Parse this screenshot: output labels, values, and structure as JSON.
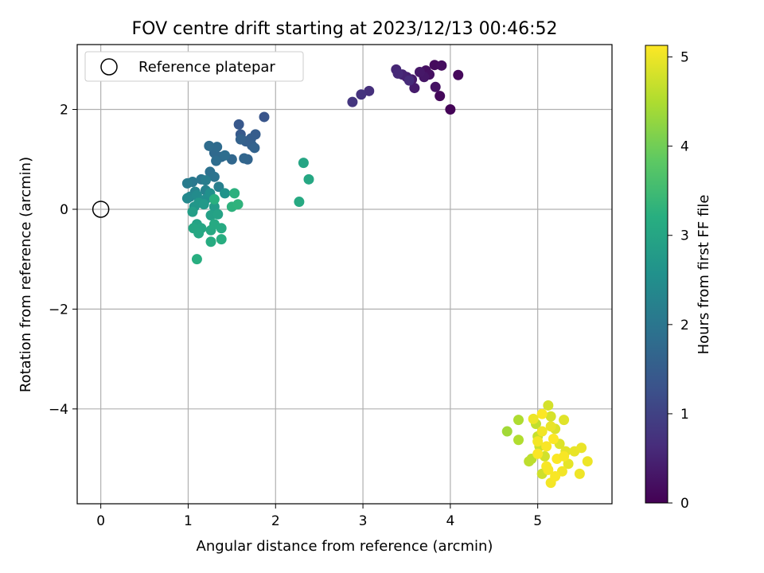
{
  "chart_data": {
    "type": "scatter",
    "title": "FOV centre drift starting at 2023/12/13 00:46:52",
    "xlabel": "Angular distance from reference (arcmin)",
    "ylabel": "Rotation from reference (arcmin)",
    "xlim": [
      -0.27,
      5.85
    ],
    "ylim": [
      -5.9,
      3.3
    ],
    "x_ticks": [
      0,
      1,
      2,
      3,
      4,
      5
    ],
    "y_ticks": [
      -4,
      -2,
      0,
      2
    ],
    "x_tick_labels": [
      "0",
      "1",
      "2",
      "3",
      "4",
      "5"
    ],
    "y_tick_labels": [
      "−4",
      "−2",
      "0",
      "2"
    ],
    "grid": true,
    "legend": {
      "placement": "top-left",
      "entries": [
        "Reference platepar"
      ]
    },
    "reference_point": {
      "x": 0,
      "y": 0,
      "label": "Reference platepar"
    },
    "colorbar": {
      "label": "Hours from first FF file",
      "range": [
        0,
        5.13
      ],
      "ticks": [
        0,
        1,
        2,
        3,
        4,
        5
      ],
      "tick_labels": [
        "0",
        "1",
        "2",
        "3",
        "4",
        "5"
      ],
      "colormap": "viridis"
    },
    "series": [
      {
        "color_by": "hours",
        "points": [
          [
            4.0,
            2.0,
            0.05
          ],
          [
            3.88,
            2.27,
            0.1
          ],
          [
            4.09,
            2.69,
            0.12
          ],
          [
            3.82,
            2.89,
            0.15
          ],
          [
            3.9,
            2.88,
            0.18
          ],
          [
            3.72,
            2.78,
            0.2
          ],
          [
            3.76,
            2.7,
            0.22
          ],
          [
            3.83,
            2.45,
            0.25
          ],
          [
            3.7,
            2.65,
            0.3
          ],
          [
            3.65,
            2.75,
            0.33
          ],
          [
            3.56,
            2.6,
            0.36
          ],
          [
            3.59,
            2.43,
            0.4
          ],
          [
            3.5,
            2.65,
            0.45
          ],
          [
            3.45,
            2.7,
            0.5
          ],
          [
            3.38,
            2.8,
            0.55
          ],
          [
            3.4,
            2.72,
            0.6
          ],
          [
            3.53,
            2.58,
            0.63
          ],
          [
            3.07,
            2.37,
            0.7
          ],
          [
            2.98,
            2.3,
            0.75
          ],
          [
            2.88,
            2.15,
            0.8
          ],
          [
            1.87,
            1.85,
            1.35
          ],
          [
            1.58,
            1.7,
            1.4
          ],
          [
            1.6,
            1.5,
            1.45
          ],
          [
            1.77,
            1.5,
            1.5
          ],
          [
            1.72,
            1.42,
            1.52
          ],
          [
            1.66,
            1.36,
            1.55
          ],
          [
            1.73,
            1.28,
            1.57
          ],
          [
            1.6,
            1.4,
            1.6
          ],
          [
            1.76,
            1.23,
            1.62
          ],
          [
            1.68,
            1.0,
            1.65
          ],
          [
            1.64,
            1.02,
            1.68
          ],
          [
            1.5,
            1.0,
            1.7
          ],
          [
            1.38,
            1.05,
            1.72
          ],
          [
            1.3,
            1.13,
            1.75
          ],
          [
            1.33,
            1.25,
            1.78
          ],
          [
            1.24,
            1.27,
            1.8
          ],
          [
            1.32,
            0.97,
            1.83
          ],
          [
            1.42,
            1.08,
            1.85
          ],
          [
            1.25,
            0.75,
            1.9
          ],
          [
            1.3,
            0.65,
            1.95
          ],
          [
            1.15,
            0.6,
            2.0
          ],
          [
            1.05,
            0.55,
            2.05
          ],
          [
            0.99,
            0.52,
            2.1
          ],
          [
            1.2,
            0.58,
            2.15
          ],
          [
            1.35,
            0.45,
            2.2
          ],
          [
            1.2,
            0.38,
            2.25
          ],
          [
            1.08,
            0.35,
            2.3
          ],
          [
            1.02,
            0.25,
            2.35
          ],
          [
            0.99,
            0.22,
            2.4
          ],
          [
            1.1,
            0.28,
            2.45
          ],
          [
            1.2,
            0.2,
            2.5
          ],
          [
            1.25,
            0.32,
            2.55
          ],
          [
            1.42,
            0.32,
            2.6
          ],
          [
            1.07,
            0.05,
            2.65
          ],
          [
            1.12,
            0.13,
            2.7
          ],
          [
            1.18,
            0.1,
            2.75
          ],
          [
            1.3,
            0.05,
            2.8
          ],
          [
            1.05,
            -0.05,
            2.85
          ],
          [
            1.26,
            -0.12,
            2.9
          ],
          [
            1.34,
            -0.1,
            2.93
          ],
          [
            1.1,
            -0.3,
            2.95
          ],
          [
            1.15,
            -0.38,
            3.0
          ],
          [
            1.06,
            -0.38,
            3.03
          ],
          [
            1.12,
            -0.48,
            3.05
          ],
          [
            1.26,
            -0.42,
            3.08
          ],
          [
            1.3,
            -0.3,
            3.1
          ],
          [
            1.38,
            -0.38,
            3.12
          ],
          [
            1.26,
            -0.65,
            3.15
          ],
          [
            1.38,
            -0.6,
            3.18
          ],
          [
            1.1,
            -1.0,
            3.2
          ],
          [
            1.3,
            0.2,
            3.22
          ],
          [
            1.53,
            0.32,
            3.25
          ],
          [
            1.5,
            0.05,
            3.28
          ],
          [
            1.57,
            0.1,
            3.3
          ],
          [
            2.32,
            0.93,
            3.0
          ],
          [
            2.38,
            0.6,
            3.05
          ],
          [
            2.27,
            0.15,
            3.1
          ],
          [
            4.65,
            -4.45,
            4.4
          ],
          [
            4.78,
            -4.22,
            4.5
          ],
          [
            4.78,
            -4.62,
            4.52
          ],
          [
            4.93,
            -5.0,
            4.6
          ],
          [
            4.9,
            -5.05,
            4.62
          ],
          [
            4.98,
            -4.3,
            4.65
          ],
          [
            5.0,
            -4.55,
            4.7
          ],
          [
            5.02,
            -4.75,
            4.72
          ],
          [
            5.05,
            -5.3,
            4.75
          ],
          [
            5.08,
            -4.95,
            4.78
          ],
          [
            5.12,
            -3.93,
            4.8
          ],
          [
            5.15,
            -4.15,
            4.82
          ],
          [
            5.2,
            -4.4,
            4.85
          ],
          [
            5.25,
            -4.7,
            4.87
          ],
          [
            5.3,
            -4.22,
            4.9
          ],
          [
            5.32,
            -4.85,
            4.92
          ],
          [
            5.35,
            -5.1,
            4.94
          ],
          [
            5.42,
            -4.85,
            4.96
          ],
          [
            5.5,
            -4.78,
            4.98
          ],
          [
            5.57,
            -5.05,
            5.0
          ],
          [
            5.48,
            -5.3,
            5.02
          ],
          [
            5.28,
            -5.25,
            5.04
          ],
          [
            5.15,
            -5.48,
            5.06
          ],
          [
            5.1,
            -5.15,
            5.08
          ],
          [
            5.0,
            -4.9,
            5.1
          ],
          [
            5.05,
            -4.1,
            5.12
          ],
          [
            5.18,
            -4.6,
            5.12
          ],
          [
            5.22,
            -5.0,
            5.11
          ],
          [
            5.1,
            -4.75,
            5.1
          ],
          [
            5.2,
            -5.35,
            5.09
          ],
          [
            5.3,
            -4.95,
            5.08
          ],
          [
            5.12,
            -5.22,
            5.07
          ],
          [
            5.0,
            -4.65,
            5.05
          ],
          [
            5.05,
            -4.45,
            5.03
          ],
          [
            4.95,
            -4.2,
            5.0
          ],
          [
            5.15,
            -4.35,
            4.97
          ]
        ]
      }
    ]
  }
}
